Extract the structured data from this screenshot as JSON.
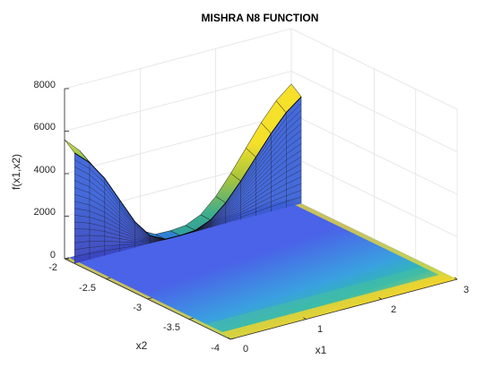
{
  "chart_data": {
    "type": "surface",
    "title": "MISHRA N8 FUNCTION",
    "xlabel": "x1",
    "ylabel": "x2",
    "zlabel": "f(x1,x2)",
    "xlim": [
      0,
      3
    ],
    "ylim": [
      -4,
      -2
    ],
    "zlim": [
      0,
      8000
    ],
    "xticks": [
      "0",
      "1",
      "2",
      "3"
    ],
    "yticks": [
      "-2",
      "-2.5",
      "-3",
      "-3.5",
      "-4"
    ],
    "zticks": [
      "0",
      "2000",
      "4000",
      "6000",
      "8000"
    ],
    "grid": true,
    "colormap": "parula",
    "projected_contour": true,
    "surface_profile": {
      "x2_fixed": -2,
      "x1": [
        0,
        0.2,
        0.4,
        0.6,
        0.8,
        1.0,
        1.2,
        1.4,
        1.6,
        1.8,
        2.0,
        2.2,
        2.4,
        2.6,
        2.8,
        3.0
      ],
      "f": [
        5600,
        4900,
        3900,
        2600,
        1300,
        400,
        20,
        0,
        60,
        380,
        1050,
        1950,
        2950,
        3950,
        4800,
        5400
      ]
    }
  }
}
